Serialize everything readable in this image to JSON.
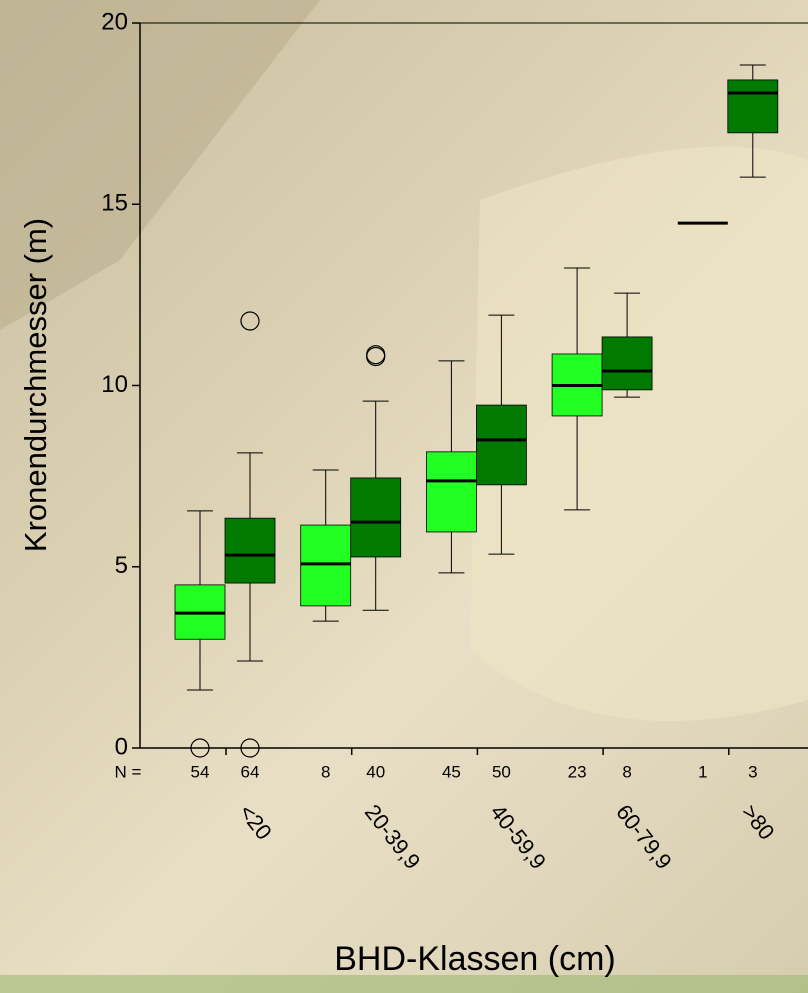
{
  "chart_data": {
    "type": "boxplot",
    "y_label": "Kronendurchmesser (m)",
    "x_label": "BHD-Klassen (cm)",
    "categories": [
      "<20",
      "20-39,9",
      "40-59,9",
      "60-79,9",
      ">80"
    ],
    "n_label": "N =",
    "ylim": [
      0,
      20
    ],
    "yticks": [
      0,
      5,
      10,
      15,
      20
    ],
    "series": [
      {
        "color": "#22ff22",
        "n": [
          54,
          8,
          45,
          23,
          1
        ],
        "boxes": [
          {
            "min": 1.6,
            "q1": 3.0,
            "median": 3.72,
            "q3": 4.5,
            "max": 6.54,
            "outliers": [
              0
            ]
          },
          {
            "min": 3.5,
            "q1": 3.92,
            "median": 5.08,
            "q3": 6.15,
            "max": 7.67,
            "outliers": []
          },
          {
            "min": 4.83,
            "q1": 5.96,
            "median": 7.37,
            "q3": 8.17,
            "max": 10.68,
            "outliers": []
          },
          {
            "min": 6.57,
            "q1": 9.16,
            "median": 10.0,
            "q3": 10.87,
            "max": 13.24,
            "outliers": []
          },
          {
            "min": 14.48,
            "q1": 14.48,
            "median": 14.48,
            "q3": 14.48,
            "max": 14.48,
            "outliers": []
          }
        ]
      },
      {
        "color": "#007a00",
        "n": [
          64,
          40,
          50,
          8,
          3
        ],
        "boxes": [
          {
            "min": 2.4,
            "q1": 4.55,
            "median": 5.32,
            "q3": 6.34,
            "max": 8.14,
            "outliers": [
              11.78,
              0
            ]
          },
          {
            "min": 3.8,
            "q1": 5.27,
            "median": 6.23,
            "q3": 7.45,
            "max": 9.57,
            "outliers": [
              10.8,
              10.85
            ]
          },
          {
            "min": 5.35,
            "q1": 7.26,
            "median": 8.5,
            "q3": 9.46,
            "max": 11.94,
            "outliers": []
          },
          {
            "min": 9.68,
            "q1": 9.88,
            "median": 10.4,
            "q3": 11.34,
            "max": 12.55,
            "outliers": []
          },
          {
            "min": 15.75,
            "q1": 16.97,
            "median": 18.07,
            "q3": 18.43,
            "max": 18.84,
            "outliers": []
          }
        ]
      }
    ]
  }
}
